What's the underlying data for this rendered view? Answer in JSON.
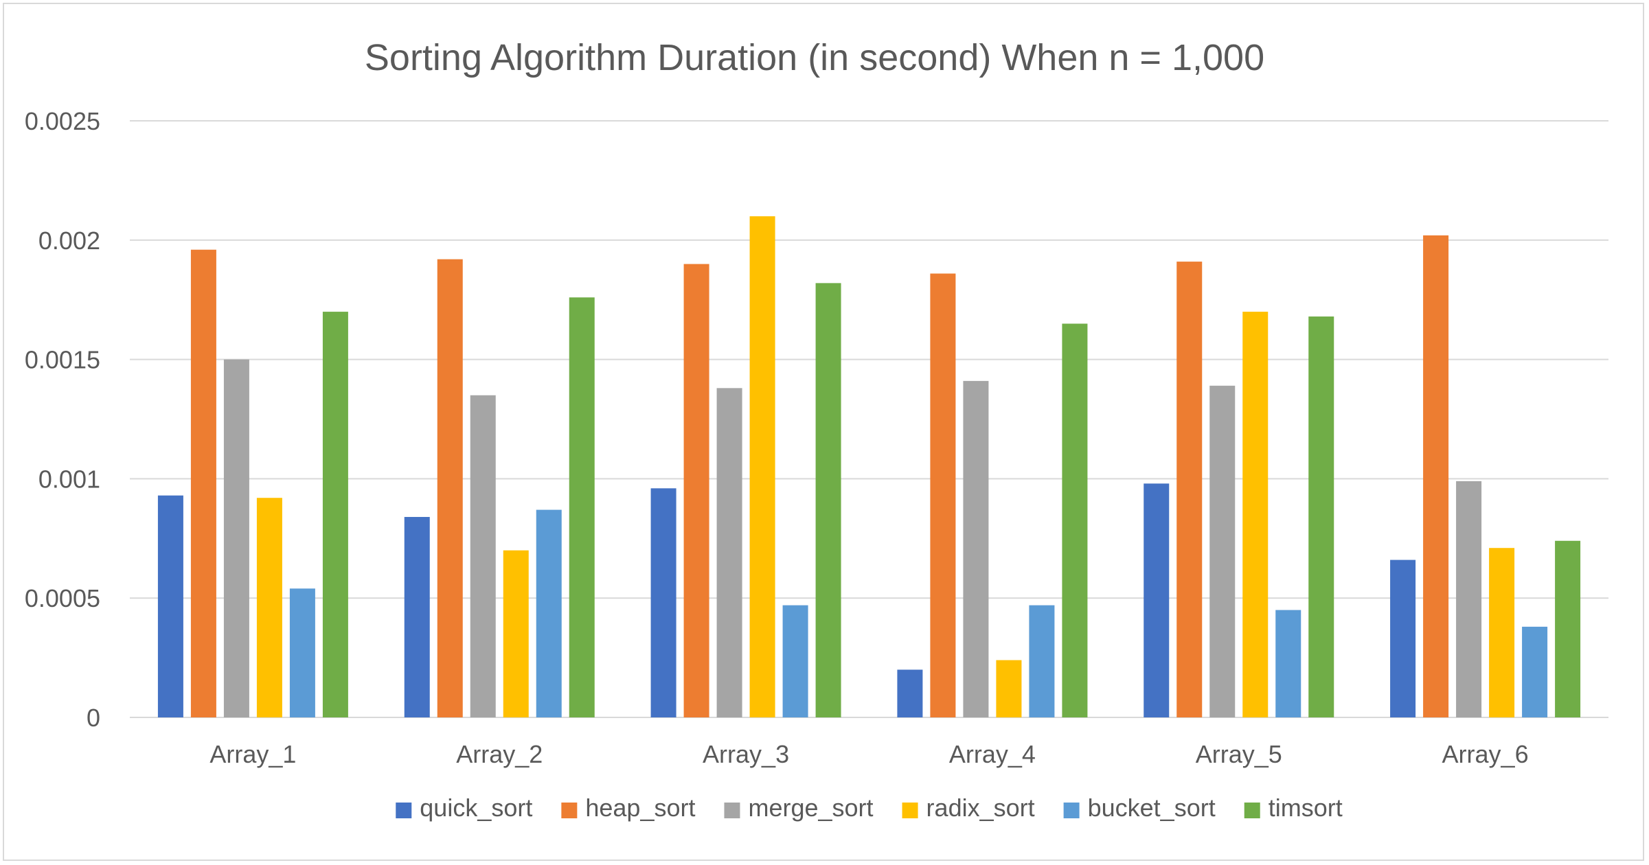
{
  "chart_data": {
    "type": "bar",
    "title": "Sorting Algorithm Duration (in second) When n = 1,000",
    "xlabel": "",
    "ylabel": "",
    "ylim": [
      0,
      0.0025
    ],
    "yticks": [
      "0",
      "0.0005",
      "0.001",
      "0.0015",
      "0.002",
      "0.0025"
    ],
    "grid": true,
    "legend_position": "bottom",
    "categories": [
      "Array_1",
      "Array_2",
      "Array_3",
      "Array_4",
      "Array_5",
      "Array_6"
    ],
    "series": [
      {
        "name": "quick_sort",
        "color": "#4472c4",
        "values": [
          0.00093,
          0.00084,
          0.00096,
          0.0002,
          0.00098,
          0.00066
        ]
      },
      {
        "name": "heap_sort",
        "color": "#ed7d31",
        "values": [
          0.00196,
          0.00192,
          0.0019,
          0.00186,
          0.00191,
          0.00202
        ]
      },
      {
        "name": "merge_sort",
        "color": "#a5a5a5",
        "values": [
          0.0015,
          0.00135,
          0.00138,
          0.00141,
          0.00139,
          0.00099
        ]
      },
      {
        "name": "radix_sort",
        "color": "#ffc000",
        "values": [
          0.00092,
          0.0007,
          0.0021,
          0.00024,
          0.0017,
          0.00071
        ]
      },
      {
        "name": "bucket_sort",
        "color": "#5b9bd5",
        "values": [
          0.00054,
          0.00087,
          0.00047,
          0.00047,
          0.00045,
          0.00038
        ]
      },
      {
        "name": "timsort",
        "color": "#70ad47",
        "values": [
          0.0017,
          0.00176,
          0.00182,
          0.00165,
          0.00168,
          0.00074
        ]
      }
    ]
  }
}
